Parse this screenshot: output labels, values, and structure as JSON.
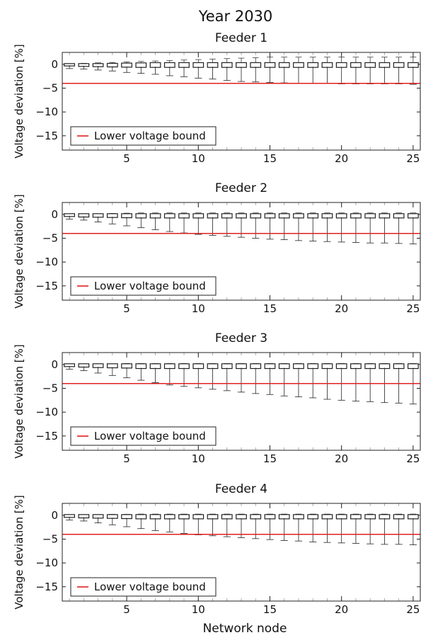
{
  "figure": {
    "title": "Year 2030",
    "xlabel": "Network node",
    "ylabel": "Voltage deviation [%]",
    "legend_label": "Lower voltage bound"
  },
  "colors": {
    "bound": "#e02020",
    "box": "#222222",
    "frame": "#222222"
  },
  "chart_data": [
    {
      "type": "box",
      "title": "Feeder 1",
      "xlabel": "",
      "ylabel": "Voltage deviation [%]",
      "xlim": [
        0.5,
        25.5
      ],
      "ylim": [
        -18,
        2.5
      ],
      "xticks": [
        5,
        10,
        15,
        20,
        25
      ],
      "yticks": [
        0,
        -5,
        -10,
        -15
      ],
      "legend": {
        "entries": [
          "Lower voltage bound"
        ],
        "position": "bottom-left"
      },
      "lower_bound": -4,
      "nodes": [
        1,
        2,
        3,
        4,
        5,
        6,
        7,
        8,
        9,
        10,
        11,
        12,
        13,
        14,
        15,
        16,
        17,
        18,
        19,
        20,
        21,
        22,
        23,
        24,
        25
      ],
      "whisker_high": [
        0.1,
        0.2,
        0.3,
        0.4,
        0.5,
        0.6,
        0.7,
        0.8,
        0.9,
        1.0,
        1.1,
        1.2,
        1.3,
        1.4,
        1.5,
        1.5,
        1.5,
        1.5,
        1.5,
        1.5,
        1.5,
        1.5,
        1.5,
        1.5,
        1.5
      ],
      "box_q3": [
        0.0,
        0.0,
        0.0,
        0.05,
        0.1,
        0.15,
        0.2,
        0.2,
        0.2,
        0.2,
        0.2,
        0.2,
        0.2,
        0.2,
        0.2,
        0.2,
        0.2,
        0.2,
        0.2,
        0.2,
        0.2,
        0.2,
        0.2,
        0.2,
        0.2
      ],
      "box_q1": [
        -0.2,
        -0.3,
        -0.35,
        -0.4,
        -0.45,
        -0.5,
        -0.5,
        -0.5,
        -0.5,
        -0.5,
        -0.5,
        -0.5,
        -0.5,
        -0.5,
        -0.5,
        -0.5,
        -0.5,
        -0.5,
        -0.5,
        -0.5,
        -0.5,
        -0.5,
        -0.5,
        -0.5,
        -0.5
      ],
      "whisker_low": [
        -0.9,
        -1.0,
        -1.2,
        -1.4,
        -1.7,
        -1.9,
        -2.1,
        -2.4,
        -2.6,
        -2.9,
        -3.1,
        -3.4,
        -3.6,
        -3.7,
        -3.8,
        -3.9,
        -3.95,
        -4.0,
        -4.05,
        -4.1,
        -4.1,
        -4.1,
        -4.1,
        -4.1,
        -4.2
      ]
    },
    {
      "type": "box",
      "title": "Feeder 2",
      "xlabel": "",
      "ylabel": "Voltage deviation [%]",
      "xlim": [
        0.5,
        25.5
      ],
      "ylim": [
        -18,
        2.5
      ],
      "xticks": [
        5,
        10,
        15,
        20,
        25
      ],
      "yticks": [
        0,
        -5,
        -10,
        -15
      ],
      "legend": {
        "entries": [
          "Lower voltage bound"
        ],
        "position": "bottom-left"
      },
      "lower_bound": -4,
      "nodes": [
        1,
        2,
        3,
        4,
        5,
        6,
        7,
        8,
        9,
        10,
        11,
        12,
        13,
        14,
        15,
        16,
        17,
        18,
        19,
        20,
        21,
        22,
        23,
        24,
        25
      ],
      "whisker_high": [
        0.1,
        0.1,
        0.15,
        0.2,
        0.25,
        0.3,
        0.3,
        0.3,
        0.3,
        0.3,
        0.3,
        0.3,
        0.3,
        0.3,
        0.3,
        0.3,
        0.3,
        0.3,
        0.3,
        0.3,
        0.3,
        0.3,
        0.3,
        0.3,
        0.3
      ],
      "box_q3": [
        0.0,
        0.0,
        0.0,
        0.0,
        0.0,
        0.0,
        0.0,
        0.0,
        0.0,
        0.0,
        0.0,
        0.0,
        0.0,
        0.0,
        0.0,
        0.0,
        0.0,
        0.0,
        0.0,
        0.0,
        0.0,
        0.0,
        0.0,
        0.0,
        0.0
      ],
      "box_q1": [
        -0.3,
        -0.4,
        -0.45,
        -0.5,
        -0.55,
        -0.6,
        -0.6,
        -0.6,
        -0.6,
        -0.6,
        -0.6,
        -0.6,
        -0.6,
        -0.6,
        -0.6,
        -0.6,
        -0.6,
        -0.6,
        -0.6,
        -0.6,
        -0.6,
        -0.6,
        -0.6,
        -0.6,
        -0.6
      ],
      "whisker_low": [
        -1.0,
        -1.2,
        -1.6,
        -2.0,
        -2.4,
        -2.8,
        -3.2,
        -3.6,
        -3.9,
        -4.2,
        -4.4,
        -4.6,
        -4.8,
        -5.0,
        -5.2,
        -5.3,
        -5.5,
        -5.6,
        -5.7,
        -5.8,
        -5.9,
        -6.0,
        -6.0,
        -6.1,
        -6.2
      ]
    },
    {
      "type": "box",
      "title": "Feeder 3",
      "xlabel": "",
      "ylabel": "Voltage deviation [%]",
      "xlim": [
        0.5,
        25.5
      ],
      "ylim": [
        -18,
        2.5
      ],
      "xticks": [
        5,
        10,
        15,
        20,
        25
      ],
      "yticks": [
        0,
        -5,
        -10,
        -15
      ],
      "legend": {
        "entries": [
          "Lower voltage bound"
        ],
        "position": "bottom-left"
      },
      "lower_bound": -4,
      "nodes": [
        1,
        2,
        3,
        4,
        5,
        6,
        7,
        8,
        9,
        10,
        11,
        12,
        13,
        14,
        15,
        16,
        17,
        18,
        19,
        20,
        21,
        22,
        23,
        24,
        25
      ],
      "whisker_high": [
        0.1,
        0.1,
        0.1,
        0.15,
        0.2,
        0.2,
        0.2,
        0.2,
        0.2,
        0.2,
        0.2,
        0.2,
        0.2,
        0.2,
        0.2,
        0.2,
        0.2,
        0.2,
        0.2,
        0.2,
        0.2,
        0.2,
        0.2,
        0.2,
        0.2
      ],
      "box_q3": [
        0.0,
        0.0,
        0.0,
        0.0,
        0.0,
        0.0,
        0.0,
        0.0,
        0.0,
        0.0,
        0.0,
        0.0,
        0.0,
        0.0,
        0.0,
        0.0,
        0.0,
        0.0,
        0.0,
        0.0,
        0.0,
        0.0,
        0.0,
        0.0,
        0.0
      ],
      "box_q1": [
        -0.3,
        -0.4,
        -0.5,
        -0.55,
        -0.6,
        -0.7,
        -0.7,
        -0.7,
        -0.7,
        -0.7,
        -0.7,
        -0.7,
        -0.7,
        -0.7,
        -0.7,
        -0.7,
        -0.7,
        -0.7,
        -0.7,
        -0.7,
        -0.7,
        -0.7,
        -0.7,
        -0.7,
        -0.7
      ],
      "whisker_low": [
        -1.0,
        -1.3,
        -1.8,
        -2.3,
        -2.8,
        -3.3,
        -3.8,
        -4.3,
        -4.6,
        -4.9,
        -5.2,
        -5.5,
        -5.8,
        -6.1,
        -6.3,
        -6.6,
        -6.8,
        -7.0,
        -7.3,
        -7.5,
        -7.7,
        -7.8,
        -8.0,
        -8.1,
        -8.3
      ]
    },
    {
      "type": "box",
      "title": "Feeder 4",
      "xlabel": "Network node",
      "ylabel": "Voltage deviation [%]",
      "xlim": [
        0.5,
        25.5
      ],
      "ylim": [
        -18,
        2.5
      ],
      "xticks": [
        5,
        10,
        15,
        20,
        25
      ],
      "yticks": [
        0,
        -5,
        -10,
        -15
      ],
      "legend": {
        "entries": [
          "Lower voltage bound"
        ],
        "position": "bottom-left"
      },
      "lower_bound": -4,
      "nodes": [
        1,
        2,
        3,
        4,
        5,
        6,
        7,
        8,
        9,
        10,
        11,
        12,
        13,
        14,
        15,
        16,
        17,
        18,
        19,
        20,
        21,
        22,
        23,
        24,
        25
      ],
      "whisker_high": [
        0.1,
        0.1,
        0.15,
        0.2,
        0.2,
        0.25,
        0.25,
        0.25,
        0.25,
        0.25,
        0.25,
        0.25,
        0.25,
        0.25,
        0.25,
        0.25,
        0.25,
        0.25,
        0.25,
        0.25,
        0.25,
        0.25,
        0.25,
        0.25,
        0.25
      ],
      "box_q3": [
        0.0,
        0.0,
        0.0,
        0.0,
        0.0,
        0.0,
        0.0,
        0.0,
        0.0,
        0.0,
        0.0,
        0.0,
        0.0,
        0.0,
        0.0,
        0.0,
        0.0,
        0.0,
        0.0,
        0.0,
        0.0,
        0.0,
        0.0,
        0.0,
        0.0
      ],
      "box_q1": [
        -0.3,
        -0.4,
        -0.45,
        -0.5,
        -0.55,
        -0.6,
        -0.6,
        -0.6,
        -0.6,
        -0.6,
        -0.6,
        -0.6,
        -0.6,
        -0.6,
        -0.6,
        -0.6,
        -0.6,
        -0.6,
        -0.6,
        -0.6,
        -0.6,
        -0.6,
        -0.6,
        -0.6,
        -0.6
      ],
      "whisker_low": [
        -1.0,
        -1.2,
        -1.6,
        -2.0,
        -2.4,
        -2.8,
        -3.2,
        -3.5,
        -3.8,
        -4.1,
        -4.3,
        -4.5,
        -4.7,
        -4.9,
        -5.1,
        -5.3,
        -5.4,
        -5.6,
        -5.7,
        -5.8,
        -5.9,
        -6.0,
        -6.1,
        -6.1,
        -6.2
      ]
    }
  ]
}
